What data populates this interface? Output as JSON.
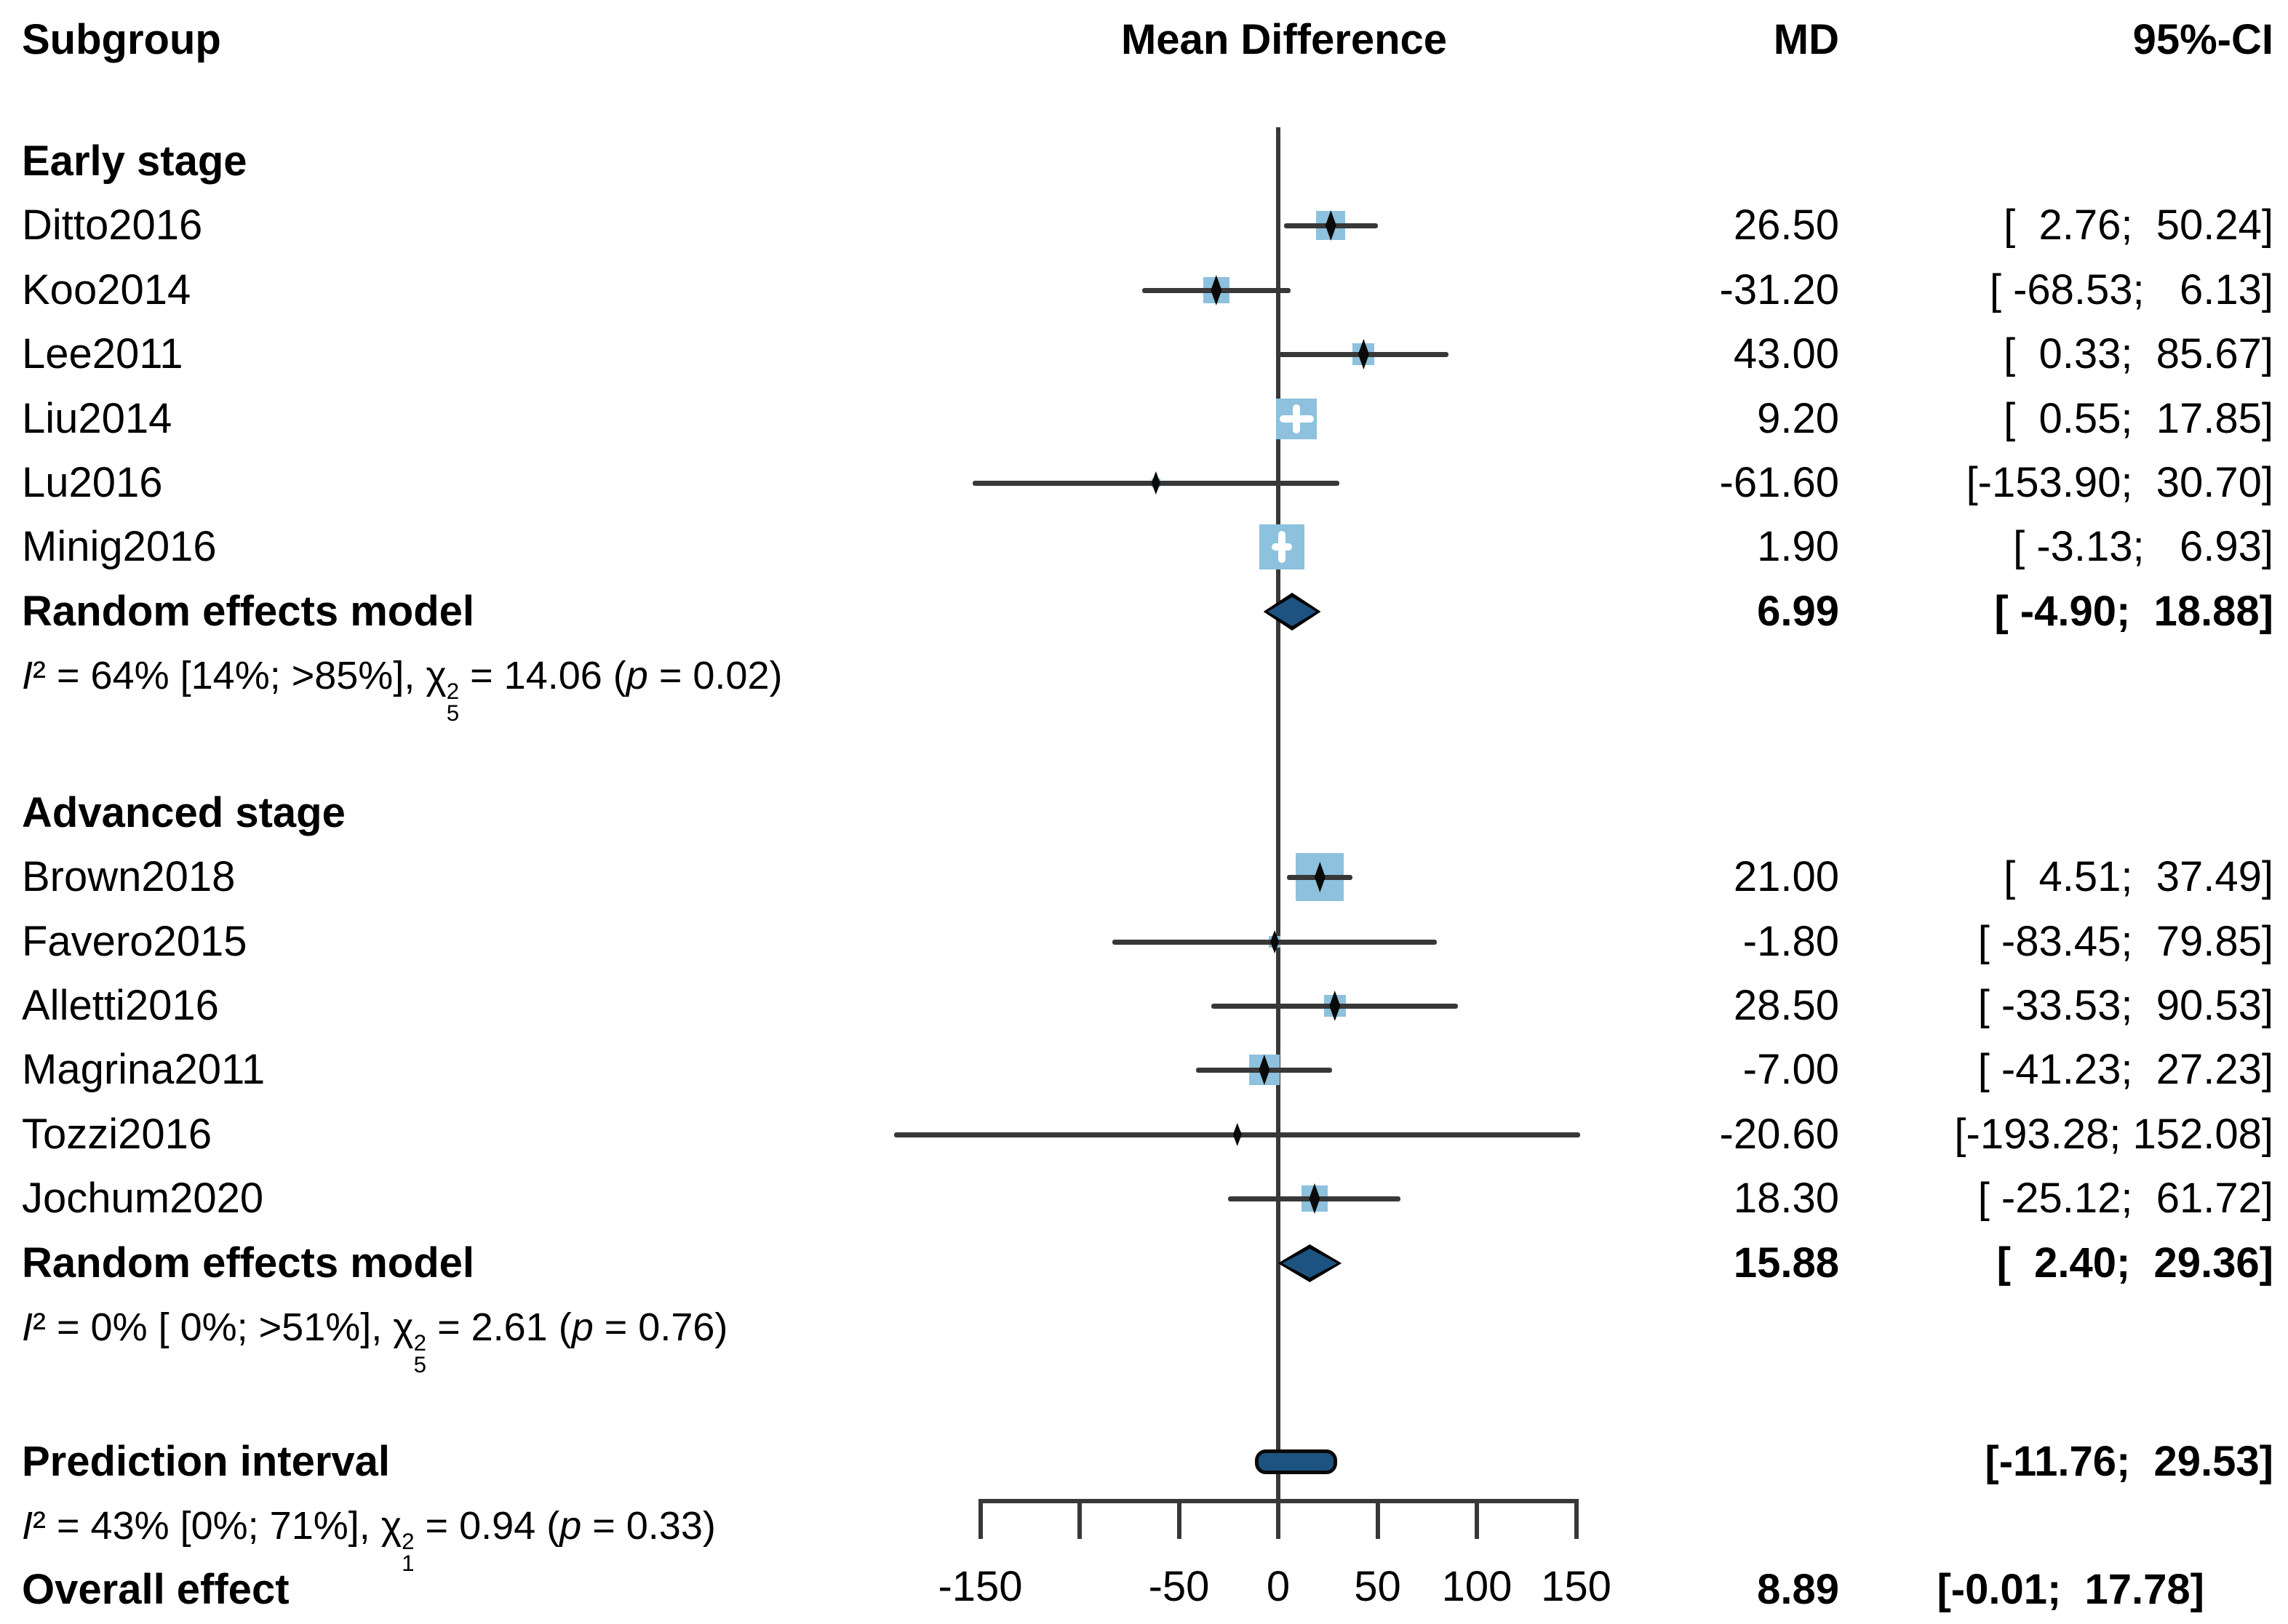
{
  "title_row": {
    "subgroup": "Subgroup",
    "mean_difference": "Mean Difference",
    "md": "MD",
    "ci": "95%-CI"
  },
  "colors": {
    "square": "#8dc1de",
    "summary": "#1d5380",
    "line": "#383838",
    "text": "#000000"
  },
  "chart_data": {
    "type": "forest",
    "title": "",
    "xlabel": "Mean Difference",
    "xlim": [
      -150,
      150
    ],
    "x_ticks": [
      -150,
      -100,
      -50,
      0,
      50,
      100,
      150
    ],
    "x_tick_labels": [
      "-150",
      "",
      "-50",
      "0",
      "50",
      "100",
      "150"
    ],
    "groups": [
      {
        "name": "Early stage",
        "studies": [
          {
            "label": "Ditto2016",
            "md": 26.5,
            "lo": 2.76,
            "hi": 50.24,
            "md_text": "26.50",
            "ci_text": "[  2.76;  50.24]",
            "square": 40
          },
          {
            "label": "Koo2014",
            "md": -31.2,
            "lo": -68.53,
            "hi": 6.13,
            "md_text": "-31.20",
            "ci_text": "[ -68.53;   6.13]",
            "square": 36
          },
          {
            "label": "Lee2011",
            "md": 43.0,
            "lo": 0.33,
            "hi": 85.67,
            "md_text": "43.00",
            "ci_text": "[  0.33;  85.67]",
            "square": 30
          },
          {
            "label": "Liu2014",
            "md": 9.2,
            "lo": 0.55,
            "hi": 17.85,
            "md_text": "9.20",
            "ci_text": "[  0.55;  17.85]",
            "square": 56
          },
          {
            "label": "Lu2016",
            "md": -61.6,
            "lo": -153.9,
            "hi": 30.7,
            "md_text": "-61.60",
            "ci_text": "[-153.90;  30.70]",
            "square": 12
          },
          {
            "label": "Minig2016",
            "md": 1.9,
            "lo": -3.13,
            "hi": 6.93,
            "md_text": "1.90",
            "ci_text": "[ -3.13;   6.93]",
            "square": 62
          }
        ],
        "summary": {
          "label": "Random effects model",
          "md": 6.99,
          "lo": -4.9,
          "hi": 18.88,
          "md_text": "6.99",
          "ci_text": "[ -4.90;  18.88]"
        },
        "het": {
          "i_part": "I² = 64% [14%; >85%], ",
          "chi_char": "χ",
          "chi_sup": "2",
          "chi_sub": "5",
          "mid_part": " = 14.06 (",
          "p_char": "p",
          "end_part": " = 0.02)"
        }
      },
      {
        "name": "Advanced stage",
        "studies": [
          {
            "label": "Brown2018",
            "md": 21.0,
            "lo": 4.51,
            "hi": 37.49,
            "md_text": "21.00",
            "ci_text": "[  4.51;  37.49]",
            "square": 66
          },
          {
            "label": "Favero2015",
            "md": -1.8,
            "lo": -83.45,
            "hi": 79.85,
            "md_text": "-1.80",
            "ci_text": "[ -83.45;  79.85]",
            "square": 16
          },
          {
            "label": "Alletti2016",
            "md": 28.5,
            "lo": -33.53,
            "hi": 90.53,
            "md_text": "28.50",
            "ci_text": "[ -33.53;  90.53]",
            "square": 30
          },
          {
            "label": "Magrina2011",
            "md": -7.0,
            "lo": -41.23,
            "hi": 27.23,
            "md_text": "-7.00",
            "ci_text": "[ -41.23;  27.23]",
            "square": 42
          },
          {
            "label": "Tozzi2016",
            "md": -20.6,
            "lo": -193.28,
            "hi": 152.08,
            "md_text": "-20.60",
            "ci_text": "[-193.28; 152.08]",
            "square": 10
          },
          {
            "label": "Jochum2020",
            "md": 18.3,
            "lo": -25.12,
            "hi": 61.72,
            "md_text": "18.30",
            "ci_text": "[ -25.12;  61.72]",
            "square": 36
          }
        ],
        "summary": {
          "label": "Random effects model",
          "md": 15.88,
          "lo": 2.4,
          "hi": 29.36,
          "md_text": "15.88",
          "ci_text": "[  2.40;  29.36]"
        },
        "het": {
          "i_part": "I² = 0% [ 0%; >51%], ",
          "chi_char": "χ",
          "chi_sup": "2",
          "chi_sub": "5",
          "mid_part": " = 2.61 (",
          "p_char": "p",
          "end_part": " = 0.76)"
        }
      }
    ],
    "prediction": {
      "label": "Prediction interval",
      "lo": -11.76,
      "hi": 29.53,
      "ci_text": "[-11.76;  29.53]"
    },
    "overall": {
      "label": "Overall effect",
      "md": 8.89,
      "lo": -0.01,
      "hi": 17.78,
      "md_text": "8.89",
      "ci_text": "[-0.01;  17.78]",
      "het": {
        "i_part": "I² = 43% [0%; 71%], ",
        "chi_char": "χ",
        "chi_sup": "2",
        "chi_sub": "1",
        "mid_part": " = 0.94 (",
        "p_char": "p",
        "end_part": " = 0.33)"
      }
    }
  }
}
